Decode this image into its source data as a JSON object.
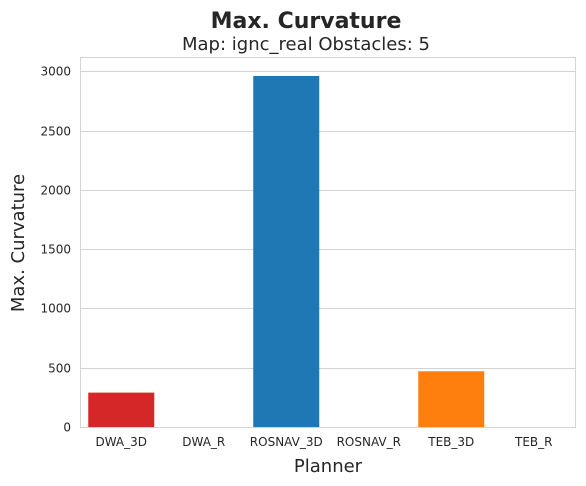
{
  "chart_data": {
    "type": "bar",
    "title": "Max. Curvature",
    "subtitle": "Map: ignc_real Obstacles: 5",
    "xlabel": "Planner",
    "ylabel": "Max. Curvature",
    "categories": [
      "DWA_3D",
      "DWA_R",
      "ROSNAV_3D",
      "ROSNAV_R",
      "TEB_3D",
      "TEB_R"
    ],
    "values": [
      290,
      0,
      2960,
      0,
      470,
      0
    ],
    "colors": [
      "#d62728",
      "#1f77b4",
      "#1f77b4",
      "#1f77b4",
      "#ff7f0e",
      "#1f77b4"
    ],
    "ylim": [
      0,
      3120
    ],
    "yticks": [
      0,
      500,
      1000,
      1500,
      2000,
      2500,
      3000
    ],
    "grid": true
  }
}
